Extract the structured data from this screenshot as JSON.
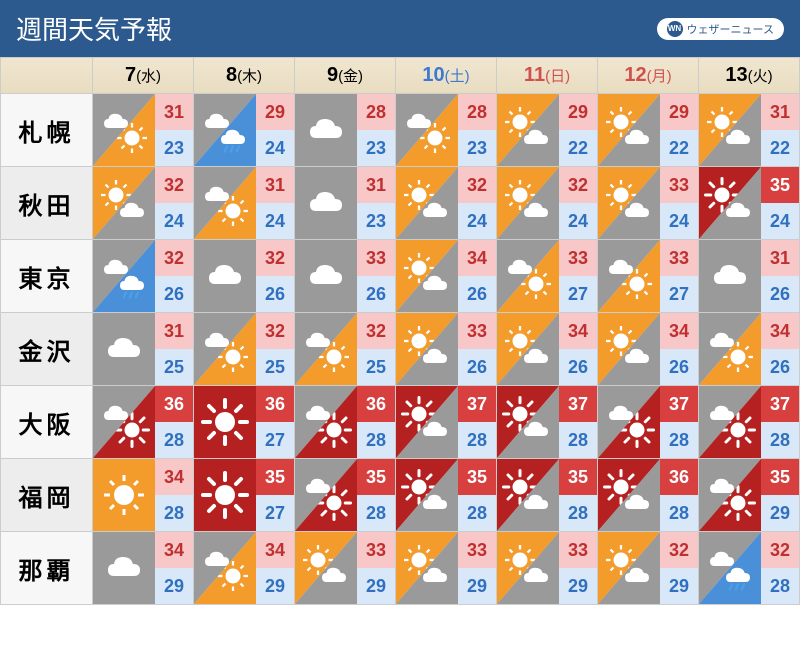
{
  "title": "週間天気予報",
  "logo": {
    "abbr": "WN",
    "text": "ウェザーニュース"
  },
  "colors": {
    "header_bg": "#2c5a8e",
    "header_fg": "#ffffff",
    "date_row_bg": "#eee2c8",
    "icon_orange": "#f39c2c",
    "icon_gray": "#9a9a9a",
    "icon_darkred": "#b52020",
    "hi_pink_bg": "#f8c8c8",
    "hi_pink_fg": "#c03030",
    "hi_red_bg": "#d84040",
    "hi_red_fg": "#ffffff",
    "lo_bg": "#d8e8f8",
    "lo_fg": "#3070c0",
    "sat": "#3a7ad0",
    "sun": "#d05050"
  },
  "dates": [
    {
      "d": "7",
      "dow": "水",
      "cls": ""
    },
    {
      "d": "8",
      "dow": "木",
      "cls": ""
    },
    {
      "d": "9",
      "dow": "金",
      "cls": ""
    },
    {
      "d": "10",
      "dow": "土",
      "cls": "dow-sat"
    },
    {
      "d": "11",
      "dow": "日",
      "cls": "dow-sun"
    },
    {
      "d": "12",
      "dow": "月",
      "cls": "dow-sun"
    },
    {
      "d": "13",
      "dow": "火",
      "cls": ""
    }
  ],
  "cities": [
    {
      "name": "札幌",
      "cells": [
        {
          "icon": "cloud-sun",
          "bg": "orange",
          "hi": 31,
          "lo": 23,
          "hic": "pink"
        },
        {
          "icon": "cloud-rain",
          "bg": "gray",
          "hi": 29,
          "lo": 24,
          "hic": "pink"
        },
        {
          "icon": "cloud",
          "bg": "gray",
          "hi": 28,
          "lo": 23,
          "hic": "pink"
        },
        {
          "icon": "cloud-sun",
          "bg": "gray",
          "hi": 28,
          "lo": 23,
          "hic": "pink"
        },
        {
          "icon": "sun-cloud",
          "bg": "orange",
          "hi": 29,
          "lo": 22,
          "hic": "pink"
        },
        {
          "icon": "sun-cloud",
          "bg": "orange",
          "hi": 29,
          "lo": 22,
          "hic": "pink"
        },
        {
          "icon": "sun-cloud",
          "bg": "orange",
          "hi": 31,
          "lo": 22,
          "hic": "pink"
        }
      ]
    },
    {
      "name": "秋田",
      "cells": [
        {
          "icon": "sun-cloud",
          "bg": "orange",
          "hi": 32,
          "lo": 24,
          "hic": "pink"
        },
        {
          "icon": "cloud-sun",
          "bg": "gray",
          "hi": 31,
          "lo": 24,
          "hic": "pink"
        },
        {
          "icon": "cloud",
          "bg": "gray",
          "hi": 31,
          "lo": 23,
          "hic": "pink"
        },
        {
          "icon": "sun-cloud",
          "bg": "orange",
          "hi": 32,
          "lo": 24,
          "hic": "pink"
        },
        {
          "icon": "sun-cloud",
          "bg": "orange",
          "hi": 32,
          "lo": 24,
          "hic": "pink"
        },
        {
          "icon": "sun-cloud",
          "bg": "orange",
          "hi": 33,
          "lo": 24,
          "hic": "pink"
        },
        {
          "icon": "hotsun-cloud",
          "bg": "darkred",
          "hi": 35,
          "lo": 24,
          "hic": "red"
        }
      ]
    },
    {
      "name": "東京",
      "cells": [
        {
          "icon": "cloud-rain",
          "bg": "gray",
          "hi": 32,
          "lo": 26,
          "hic": "pink"
        },
        {
          "icon": "cloud",
          "bg": "gray",
          "hi": 32,
          "lo": 26,
          "hic": "pink"
        },
        {
          "icon": "cloud",
          "bg": "gray",
          "hi": 33,
          "lo": 26,
          "hic": "pink"
        },
        {
          "icon": "sun-cloud",
          "bg": "orange",
          "hi": 34,
          "lo": 26,
          "hic": "pink"
        },
        {
          "icon": "cloud-sun",
          "bg": "gray",
          "hi": 33,
          "lo": 27,
          "hic": "pink"
        },
        {
          "icon": "cloud-sun",
          "bg": "gray",
          "hi": 33,
          "lo": 27,
          "hic": "pink"
        },
        {
          "icon": "cloud",
          "bg": "gray",
          "hi": 31,
          "lo": 26,
          "hic": "pink"
        }
      ]
    },
    {
      "name": "金沢",
      "cells": [
        {
          "icon": "cloud",
          "bg": "gray",
          "hi": 31,
          "lo": 25,
          "hic": "pink"
        },
        {
          "icon": "cloud-sun",
          "bg": "gray",
          "hi": 32,
          "lo": 25,
          "hic": "pink"
        },
        {
          "icon": "cloud-sun",
          "bg": "gray",
          "hi": 32,
          "lo": 25,
          "hic": "pink"
        },
        {
          "icon": "sun-cloud",
          "bg": "orange",
          "hi": 33,
          "lo": 26,
          "hic": "pink"
        },
        {
          "icon": "sun-cloud",
          "bg": "orange",
          "hi": 34,
          "lo": 26,
          "hic": "pink"
        },
        {
          "icon": "sun-cloud",
          "bg": "orange",
          "hi": 34,
          "lo": 26,
          "hic": "pink"
        },
        {
          "icon": "cloud-sun",
          "bg": "gray",
          "hi": 34,
          "lo": 26,
          "hic": "pink"
        }
      ]
    },
    {
      "name": "大阪",
      "cells": [
        {
          "icon": "cloud-hotsun",
          "bg": "gray",
          "hi": 36,
          "lo": 28,
          "hic": "red"
        },
        {
          "icon": "hotsun",
          "bg": "darkred",
          "hi": 36,
          "lo": 27,
          "hic": "red"
        },
        {
          "icon": "cloud-hotsun",
          "bg": "gray",
          "hi": 36,
          "lo": 28,
          "hic": "red"
        },
        {
          "icon": "hotsun-cloud",
          "bg": "darkred",
          "hi": 37,
          "lo": 28,
          "hic": "red"
        },
        {
          "icon": "hotsun-cloud",
          "bg": "darkred",
          "hi": 37,
          "lo": 28,
          "hic": "red"
        },
        {
          "icon": "cloud-hotsun",
          "bg": "gray",
          "hi": 37,
          "lo": 28,
          "hic": "red"
        },
        {
          "icon": "cloud-hotsun",
          "bg": "gray",
          "hi": 37,
          "lo": 28,
          "hic": "red"
        }
      ]
    },
    {
      "name": "福岡",
      "cells": [
        {
          "icon": "sun",
          "bg": "orange",
          "hi": 34,
          "lo": 28,
          "hic": "pink"
        },
        {
          "icon": "hotsun",
          "bg": "darkred",
          "hi": 35,
          "lo": 27,
          "hic": "red"
        },
        {
          "icon": "cloud-hotsun",
          "bg": "gray",
          "hi": 35,
          "lo": 28,
          "hic": "red"
        },
        {
          "icon": "hotsun-cloud",
          "bg": "darkred",
          "hi": 35,
          "lo": 28,
          "hic": "red"
        },
        {
          "icon": "hotsun-cloud",
          "bg": "darkred",
          "hi": 35,
          "lo": 28,
          "hic": "red"
        },
        {
          "icon": "hotsun-cloud",
          "bg": "darkred",
          "hi": 36,
          "lo": 28,
          "hic": "red"
        },
        {
          "icon": "cloud-hotsun",
          "bg": "gray",
          "hi": 35,
          "lo": 29,
          "hic": "red"
        }
      ]
    },
    {
      "name": "那覇",
      "cells": [
        {
          "icon": "cloud",
          "bg": "gray",
          "hi": 34,
          "lo": 29,
          "hic": "pink"
        },
        {
          "icon": "cloud-sun",
          "bg": "gray",
          "hi": 34,
          "lo": 29,
          "hic": "pink"
        },
        {
          "icon": "sun-cloud",
          "bg": "orange",
          "hi": 33,
          "lo": 29,
          "hic": "pink"
        },
        {
          "icon": "sun-cloud",
          "bg": "orange",
          "hi": 33,
          "lo": 29,
          "hic": "pink"
        },
        {
          "icon": "sun-cloud",
          "bg": "orange",
          "hi": 33,
          "lo": 29,
          "hic": "pink"
        },
        {
          "icon": "sun-cloud",
          "bg": "orange",
          "hi": 32,
          "lo": 29,
          "hic": "pink"
        },
        {
          "icon": "cloud-rain",
          "bg": "gray",
          "hi": 32,
          "lo": 28,
          "hic": "pink"
        }
      ]
    }
  ]
}
